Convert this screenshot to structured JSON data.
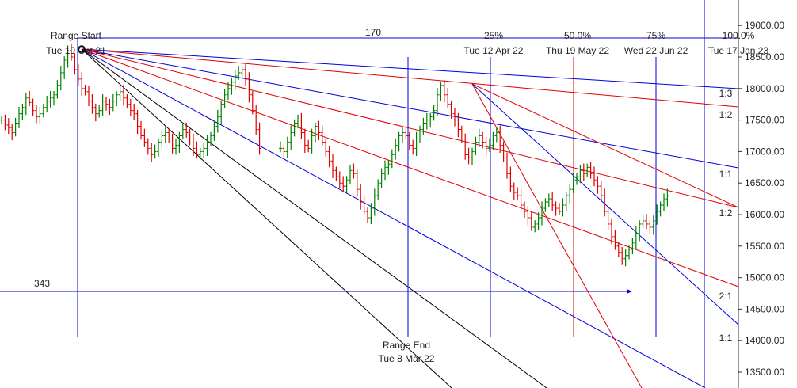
{
  "chart_data": {
    "type": "ohlc",
    "title": "",
    "xlabel": "",
    "ylabel": "",
    "ylim": [
      13250,
      19300
    ],
    "y_ticks": [
      "13500.00",
      "14000.00",
      "14500.00",
      "15000.00",
      "15500.00",
      "16000.00",
      "16500.00",
      "17000.00",
      "17500.00",
      "18000.00",
      "18500.00",
      "19000.00"
    ],
    "range_start": {
      "title": "Range Start",
      "date": "Tue 19 Oct 21"
    },
    "range_end": {
      "title": "Range End",
      "date": "Tue 8 Mar 22"
    },
    "bar_count_label": "170",
    "price_range_label": "343",
    "time_projections": [
      {
        "pct": "25%",
        "date": "Tue 12 Apr 22"
      },
      {
        "pct": "50.0%",
        "date": "Thu 19 May 22"
      },
      {
        "pct": "75%",
        "date": "Wed 22 Jun 22"
      },
      {
        "pct": "100.0%",
        "date": "Tue 17 Jan 23"
      }
    ],
    "gann_ratio_labels": [
      "1:3",
      "1:2",
      "1:1",
      "1:2",
      "2:1",
      "1:1"
    ],
    "colors": {
      "up_bar": "#008000",
      "down_bar": "#e00000",
      "blue": "#0000dd",
      "red": "#e00000",
      "black": "#000000"
    },
    "closes": [
      17500,
      17420,
      17380,
      17300,
      17450,
      17600,
      17700,
      17850,
      17780,
      17650,
      17550,
      17600,
      17700,
      17800,
      17850,
      17900,
      18050,
      18250,
      18450,
      18600,
      18500,
      18300,
      18150,
      18000,
      17950,
      17800,
      17700,
      17600,
      17650,
      17800,
      17750,
      17700,
      17800,
      17900,
      17950,
      17850,
      17750,
      17650,
      17600,
      17400,
      17250,
      17150,
      17050,
      16950,
      17000,
      17150,
      17250,
      17300,
      17200,
      17050,
      17100,
      17250,
      17350,
      17300,
      17200,
      17050,
      16950,
      17000,
      17050,
      17150,
      17250,
      17400,
      17550,
      17750,
      17900,
      18000,
      18100,
      18200,
      18250,
      18300,
      18150,
      17900,
      17650,
      17350,
      17050,
      17000,
      17150,
      17300,
      17200,
      17100,
      17050,
      17000,
      17150,
      17300,
      17450,
      17500,
      17300,
      17100,
      17050,
      17250,
      17400,
      17300,
      17150,
      17000,
      16850,
      16700,
      16600,
      16500,
      16450,
      16550,
      16700,
      16650,
      16400,
      16200,
      16050,
      15950,
      16100,
      16300,
      16500,
      16650,
      16750,
      16800,
      16950,
      17100,
      17250,
      17300,
      17250,
      17100,
      17050,
      17200,
      17350,
      17450,
      17500,
      17550,
      17650,
      17900,
      18050,
      17900,
      17750,
      17600,
      17500,
      17350,
      17200,
      16950,
      16900,
      17000,
      17150,
      17250,
      17150,
      17050,
      17100,
      17250,
      17300,
      17100,
      16900,
      16650,
      16450,
      16350,
      16300,
      16150,
      16050,
      15950,
      15800,
      15850,
      15950,
      16100,
      16200,
      16250,
      16150,
      16100,
      16050,
      16150,
      16300,
      16400,
      16550,
      16600,
      16700,
      16650,
      16750,
      16650,
      16550,
      16450,
      16300,
      16050,
      15850,
      15650,
      15500,
      15400,
      15300,
      15350,
      15450,
      15550,
      15700,
      15850,
      15900,
      15850,
      15800,
      15900,
      16050,
      16150,
      16250,
      16300
    ]
  }
}
